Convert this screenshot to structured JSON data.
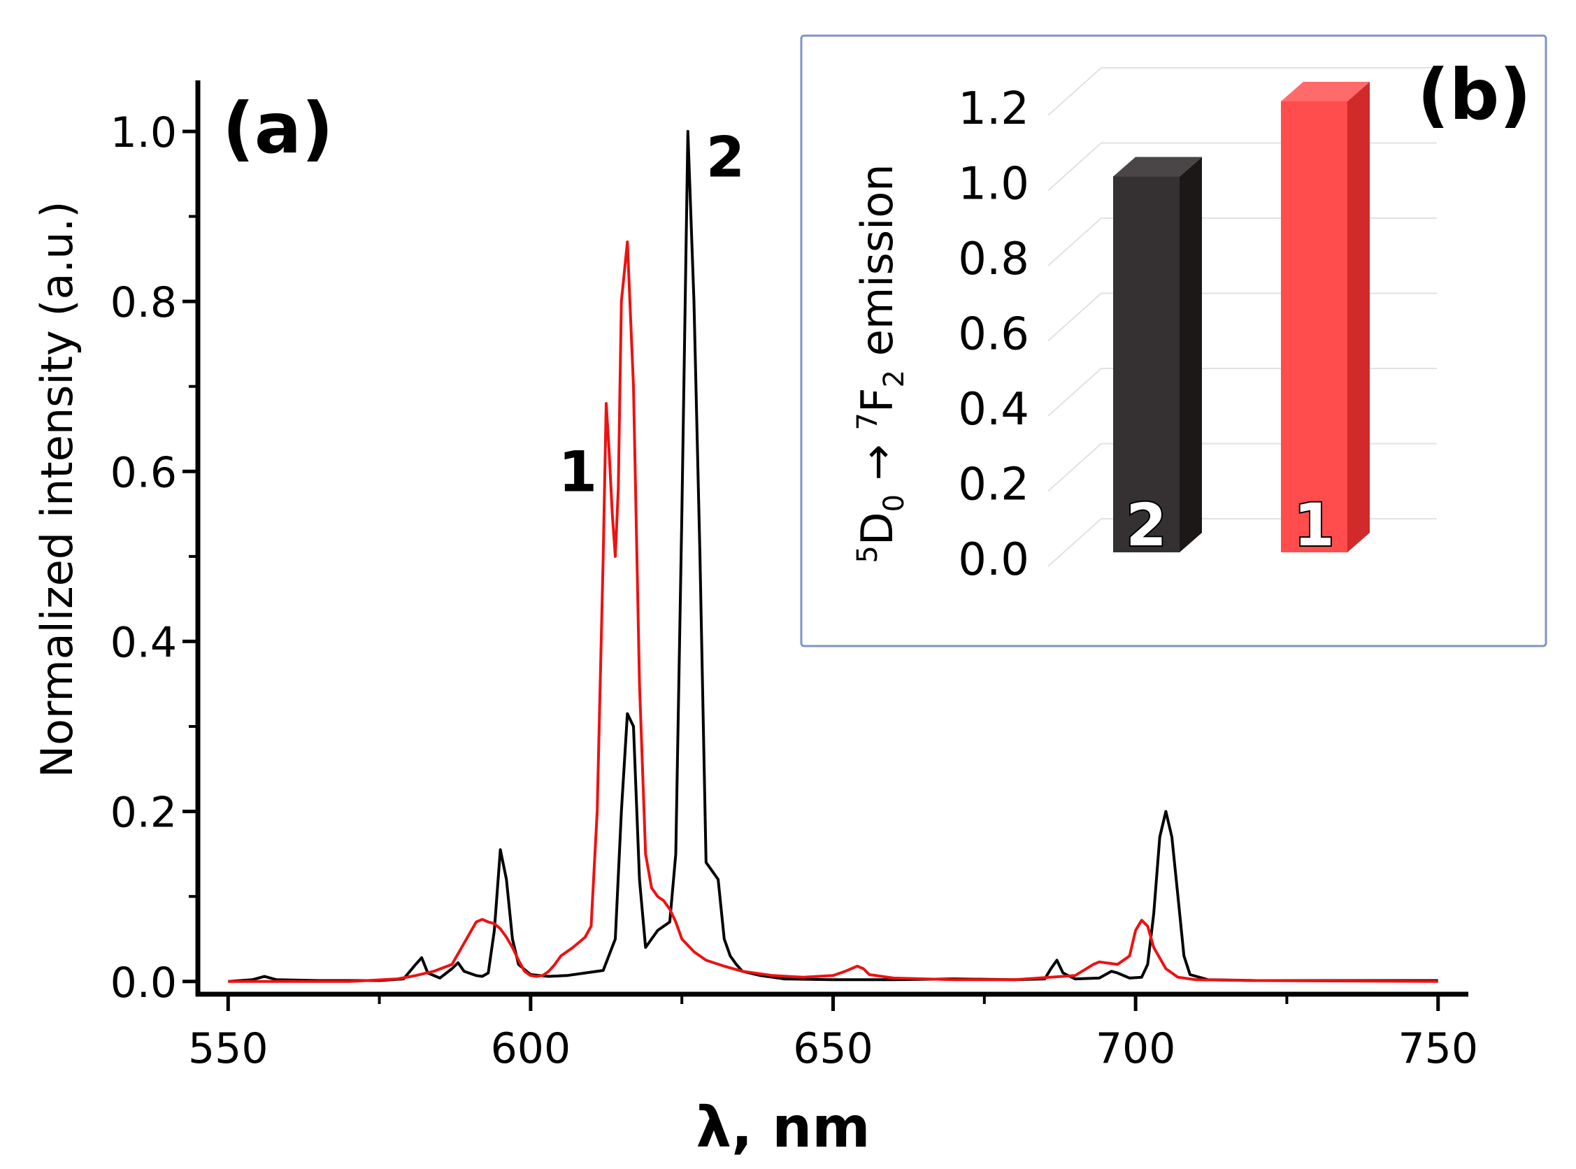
{
  "chart_data": [
    {
      "panel_label": "(a)",
      "type": "line",
      "xlabel": "λ, nm",
      "ylabel": "Normalized intensity (a.u.)",
      "xlim": [
        545,
        755
      ],
      "ylim": [
        -0.015,
        1.06
      ],
      "xticks": [
        550,
        600,
        650,
        700,
        750
      ],
      "xtick_labels": [
        "550",
        "600",
        "650",
        "700",
        "750"
      ],
      "yticks": [
        0.0,
        0.2,
        0.4,
        0.6,
        0.8,
        1.0
      ],
      "ytick_labels": [
        "0.0",
        "0.2",
        "0.4",
        "0.6",
        "0.8",
        "1.0"
      ],
      "series": [
        {
          "name": "2",
          "color": "#000000",
          "points": [
            [
              550,
              0.0
            ],
            [
              554,
              0.002
            ],
            [
              556,
              0.006
            ],
            [
              558,
              0.002
            ],
            [
              565,
              0.001
            ],
            [
              570,
              0.001
            ],
            [
              575,
              0.001
            ],
            [
              579,
              0.003
            ],
            [
              581,
              0.02
            ],
            [
              582,
              0.028
            ],
            [
              583,
              0.01
            ],
            [
              585,
              0.004
            ],
            [
              587,
              0.015
            ],
            [
              588,
              0.022
            ],
            [
              589,
              0.012
            ],
            [
              591,
              0.007
            ],
            [
              592,
              0.006
            ],
            [
              593,
              0.01
            ],
            [
              594,
              0.06
            ],
            [
              595,
              0.155
            ],
            [
              596,
              0.12
            ],
            [
              597,
              0.05
            ],
            [
              598,
              0.02
            ],
            [
              600,
              0.008
            ],
            [
              603,
              0.006
            ],
            [
              606,
              0.007
            ],
            [
              609,
              0.01
            ],
            [
              612,
              0.013
            ],
            [
              614,
              0.05
            ],
            [
              615,
              0.2
            ],
            [
              616,
              0.315
            ],
            [
              617,
              0.3
            ],
            [
              618,
              0.12
            ],
            [
              619,
              0.04
            ],
            [
              620,
              0.05
            ],
            [
              621,
              0.06
            ],
            [
              622,
              0.065
            ],
            [
              623,
              0.07
            ],
            [
              624,
              0.15
            ],
            [
              625,
              0.55
            ],
            [
              626,
              1.0
            ],
            [
              627,
              0.8
            ],
            [
              628,
              0.5
            ],
            [
              629,
              0.14
            ],
            [
              630,
              0.13
            ],
            [
              631,
              0.12
            ],
            [
              632,
              0.05
            ],
            [
              633,
              0.03
            ],
            [
              634,
              0.02
            ],
            [
              635,
              0.012
            ],
            [
              638,
              0.007
            ],
            [
              642,
              0.003
            ],
            [
              650,
              0.002
            ],
            [
              660,
              0.002
            ],
            [
              670,
              0.003
            ],
            [
              680,
              0.002
            ],
            [
              685,
              0.003
            ],
            [
              686,
              0.015
            ],
            [
              687,
              0.025
            ],
            [
              688,
              0.01
            ],
            [
              690,
              0.003
            ],
            [
              694,
              0.004
            ],
            [
              696,
              0.012
            ],
            [
              697,
              0.01
            ],
            [
              699,
              0.004
            ],
            [
              701,
              0.005
            ],
            [
              702,
              0.02
            ],
            [
              703,
              0.08
            ],
            [
              704,
              0.17
            ],
            [
              705,
              0.2
            ],
            [
              706,
              0.17
            ],
            [
              707,
              0.1
            ],
            [
              708,
              0.03
            ],
            [
              709,
              0.008
            ],
            [
              712,
              0.002
            ],
            [
              720,
              0.001
            ],
            [
              750,
              0.001
            ]
          ]
        },
        {
          "name": "1",
          "color": "#ee1111",
          "points": [
            [
              550,
              0.0
            ],
            [
              570,
              0.0
            ],
            [
              578,
              0.003
            ],
            [
              581,
              0.007
            ],
            [
              584,
              0.012
            ],
            [
              587,
              0.02
            ],
            [
              589,
              0.045
            ],
            [
              591,
              0.07
            ],
            [
              592,
              0.073
            ],
            [
              593,
              0.07
            ],
            [
              594,
              0.068
            ],
            [
              595,
              0.062
            ],
            [
              596,
              0.052
            ],
            [
              597,
              0.04
            ],
            [
              598,
              0.025
            ],
            [
              599,
              0.012
            ],
            [
              600,
              0.007
            ],
            [
              601,
              0.006
            ],
            [
              602,
              0.007
            ],
            [
              603,
              0.012
            ],
            [
              604,
              0.02
            ],
            [
              605,
              0.03
            ],
            [
              607,
              0.04
            ],
            [
              609,
              0.052
            ],
            [
              610,
              0.065
            ],
            [
              611,
              0.2
            ],
            [
              612,
              0.5
            ],
            [
              612.5,
              0.68
            ],
            [
              613,
              0.62
            ],
            [
              613.5,
              0.55
            ],
            [
              614,
              0.5
            ],
            [
              614.5,
              0.58
            ],
            [
              615,
              0.8
            ],
            [
              616,
              0.87
            ],
            [
              617,
              0.7
            ],
            [
              618,
              0.35
            ],
            [
              619,
              0.15
            ],
            [
              620,
              0.11
            ],
            [
              621,
              0.1
            ],
            [
              622,
              0.095
            ],
            [
              623,
              0.085
            ],
            [
              624,
              0.07
            ],
            [
              625,
              0.05
            ],
            [
              627,
              0.035
            ],
            [
              629,
              0.025
            ],
            [
              632,
              0.018
            ],
            [
              635,
              0.012
            ],
            [
              640,
              0.007
            ],
            [
              645,
              0.005
            ],
            [
              650,
              0.007
            ],
            [
              652,
              0.012
            ],
            [
              654,
              0.018
            ],
            [
              655,
              0.015
            ],
            [
              656,
              0.008
            ],
            [
              660,
              0.004
            ],
            [
              670,
              0.002
            ],
            [
              680,
              0.002
            ],
            [
              690,
              0.007
            ],
            [
              693,
              0.02
            ],
            [
              694,
              0.023
            ],
            [
              695,
              0.022
            ],
            [
              697,
              0.02
            ],
            [
              699,
              0.03
            ],
            [
              700,
              0.06
            ],
            [
              701,
              0.072
            ],
            [
              702,
              0.065
            ],
            [
              703,
              0.04
            ],
            [
              705,
              0.015
            ],
            [
              707,
              0.005
            ],
            [
              710,
              0.002
            ],
            [
              720,
              0.001
            ],
            [
              750,
              0.0
            ]
          ]
        }
      ],
      "annotations": [
        {
          "text": "1",
          "x": 607.8,
          "y": 0.6
        },
        {
          "text": "2",
          "x": 632.2,
          "y": 0.97
        }
      ]
    },
    {
      "panel_label": "(b)",
      "type": "bar",
      "ylabel_parts": [
        "5",
        "D",
        "0",
        " → ",
        "7",
        "F",
        "2",
        " emission"
      ],
      "ylim": [
        0,
        1.2
      ],
      "yticks": [
        0.0,
        0.2,
        0.4,
        0.6,
        0.8,
        1.0,
        1.2
      ],
      "ytick_labels": [
        "0.0",
        "0.2",
        "0.4",
        "0.6",
        "0.8",
        "1.0",
        "1.2"
      ],
      "categories": [
        "2",
        "1"
      ],
      "values": [
        1.0,
        1.2
      ],
      "bar_colors": [
        {
          "front": "#353132",
          "side": "#1c1818",
          "top": "#4a4546"
        },
        {
          "front": "#ff4c4c",
          "side": "#d12a2a",
          "top": "#ff6a6a"
        }
      ]
    }
  ]
}
